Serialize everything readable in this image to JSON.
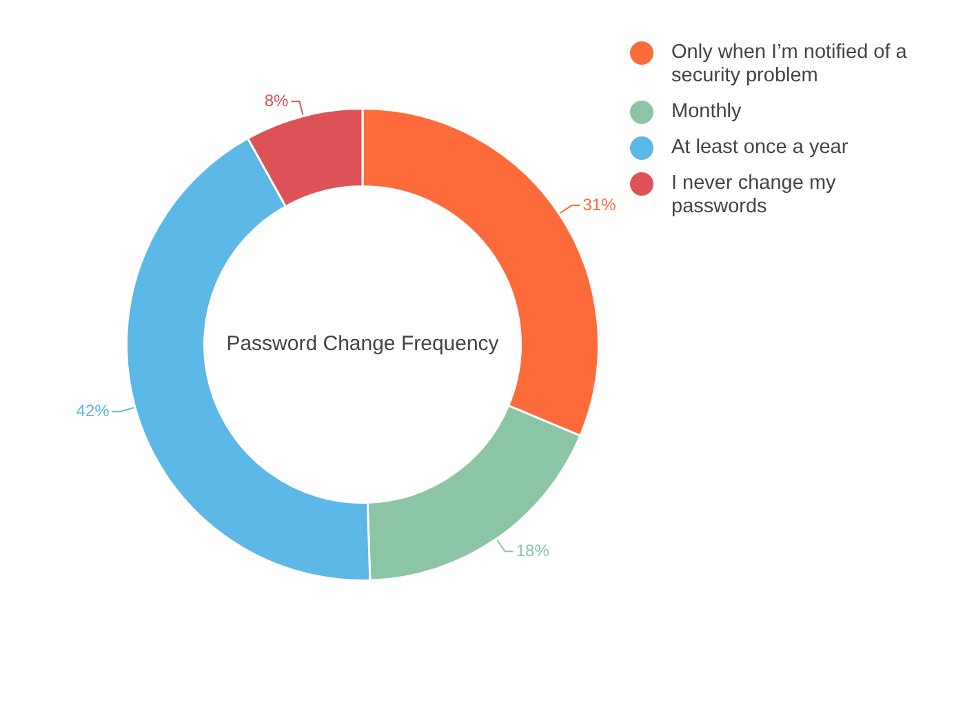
{
  "chart_data": {
    "type": "donut",
    "title": "Password Change Frequency",
    "categories": [
      "Only when I’m notified of a security problem",
      "Monthly",
      "At least once a year",
      "I never change my passwords"
    ],
    "values": [
      31,
      18,
      42,
      8
    ],
    "colors": [
      "#fe6b3a",
      "#8cc5a6",
      "#5cb8e6",
      "#dd5257"
    ],
    "value_labels": [
      "31%",
      "18%",
      "42%",
      "8%"
    ],
    "legend": "top right"
  }
}
